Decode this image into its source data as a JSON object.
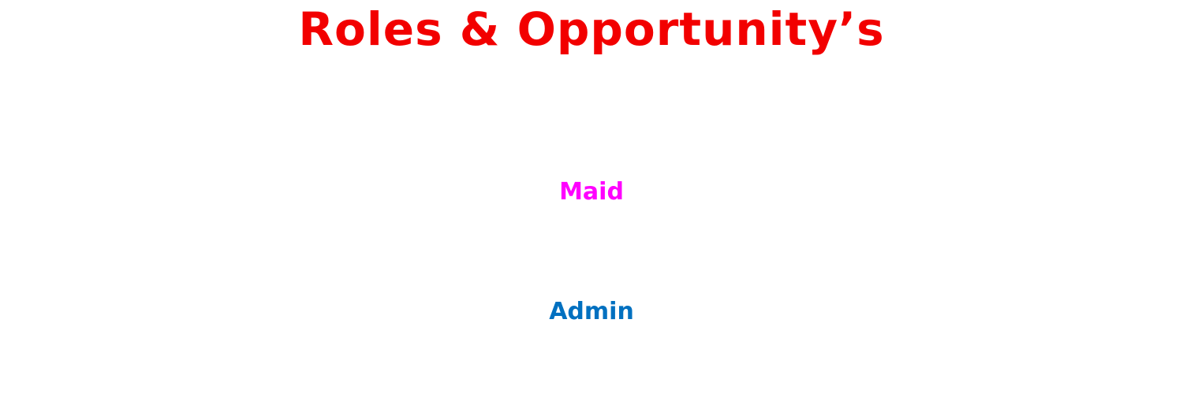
{
  "header": {
    "title": "Roles & Opportunity’s",
    "title_color": "#f20000"
  },
  "roles": [
    {
      "label": "Maid",
      "color": "#ff00ff"
    },
    {
      "label": "Admin",
      "color": "#0070c0"
    }
  ]
}
